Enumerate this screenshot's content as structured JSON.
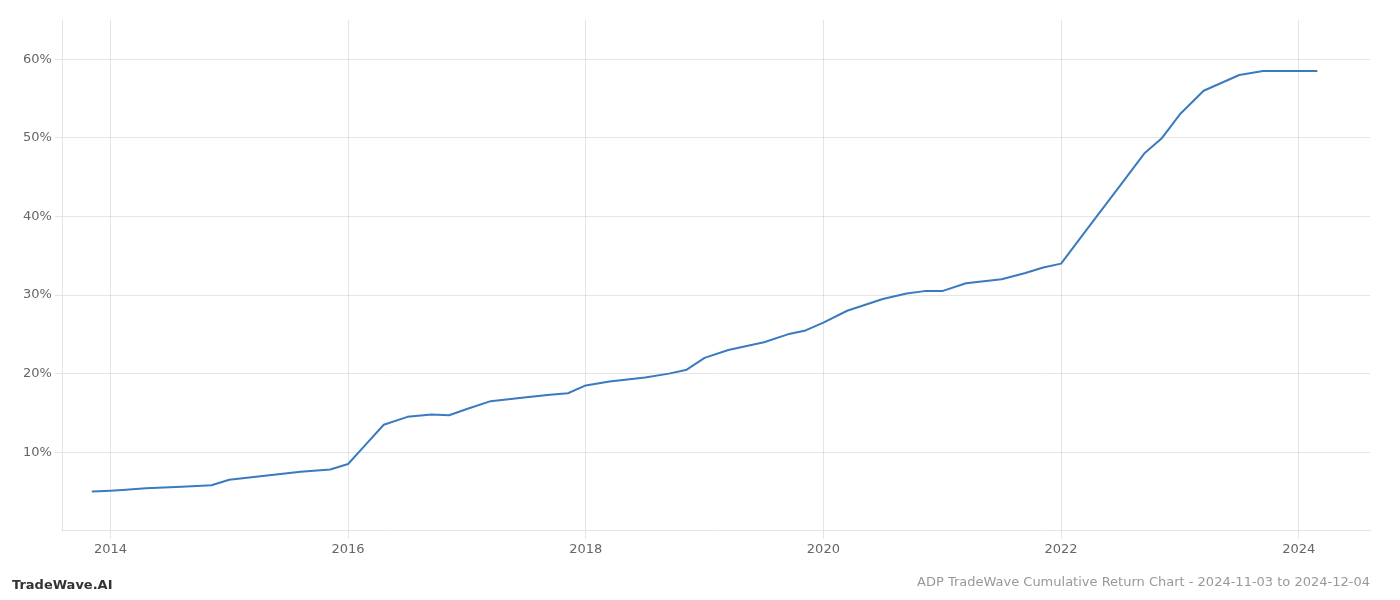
{
  "chart_data": {
    "type": "line",
    "title": "ADP TradeWave Cumulative Return Chart - 2024-11-03 to 2024-12-04",
    "annotations": [
      "TradeWave.AI"
    ],
    "x": [
      2013.85,
      2014.0,
      2014.1,
      2014.3,
      2014.6,
      2014.85,
      2015.0,
      2015.3,
      2015.6,
      2015.85,
      2016.0,
      2016.15,
      2016.3,
      2016.5,
      2016.7,
      2016.85,
      2017.0,
      2017.2,
      2017.5,
      2017.7,
      2017.85,
      2018.0,
      2018.2,
      2018.5,
      2018.7,
      2018.85,
      2019.0,
      2019.2,
      2019.5,
      2019.7,
      2019.85,
      2020.0,
      2020.2,
      2020.5,
      2020.7,
      2020.85,
      2021.0,
      2021.2,
      2021.5,
      2021.7,
      2021.85,
      2022.0,
      2022.2,
      2022.5,
      2022.7,
      2022.85,
      2023.0,
      2023.2,
      2023.5,
      2023.7,
      2023.85,
      2024.0,
      2024.15
    ],
    "values": [
      5.0,
      5.1,
      5.2,
      5.4,
      5.6,
      5.8,
      6.5,
      7.0,
      7.5,
      7.8,
      8.5,
      11.0,
      13.5,
      14.5,
      14.8,
      14.7,
      15.5,
      16.5,
      17.0,
      17.3,
      17.5,
      18.5,
      19.0,
      19.5,
      20.0,
      20.5,
      22.0,
      23.0,
      24.0,
      25.0,
      25.5,
      26.5,
      28.0,
      29.5,
      30.2,
      30.5,
      30.5,
      31.5,
      32.0,
      32.8,
      33.5,
      34.0,
      38.0,
      44.0,
      48.0,
      50.0,
      53.0,
      56.0,
      58.0,
      58.5,
      58.5,
      58.5,
      58.5
    ],
    "color": "#3a7abf",
    "xlim": [
      2013.6,
      2024.6
    ],
    "ylim": [
      0,
      65
    ],
    "xticks": [
      2014,
      2016,
      2018,
      2020,
      2022,
      2024
    ],
    "yticks": [
      {
        "value": 10,
        "label": "10%"
      },
      {
        "value": 20,
        "label": "20%"
      },
      {
        "value": 30,
        "label": "30%"
      },
      {
        "value": 40,
        "label": "40%"
      },
      {
        "value": 50,
        "label": "50%"
      },
      {
        "value": 60,
        "label": "60%"
      }
    ],
    "grid": true
  }
}
